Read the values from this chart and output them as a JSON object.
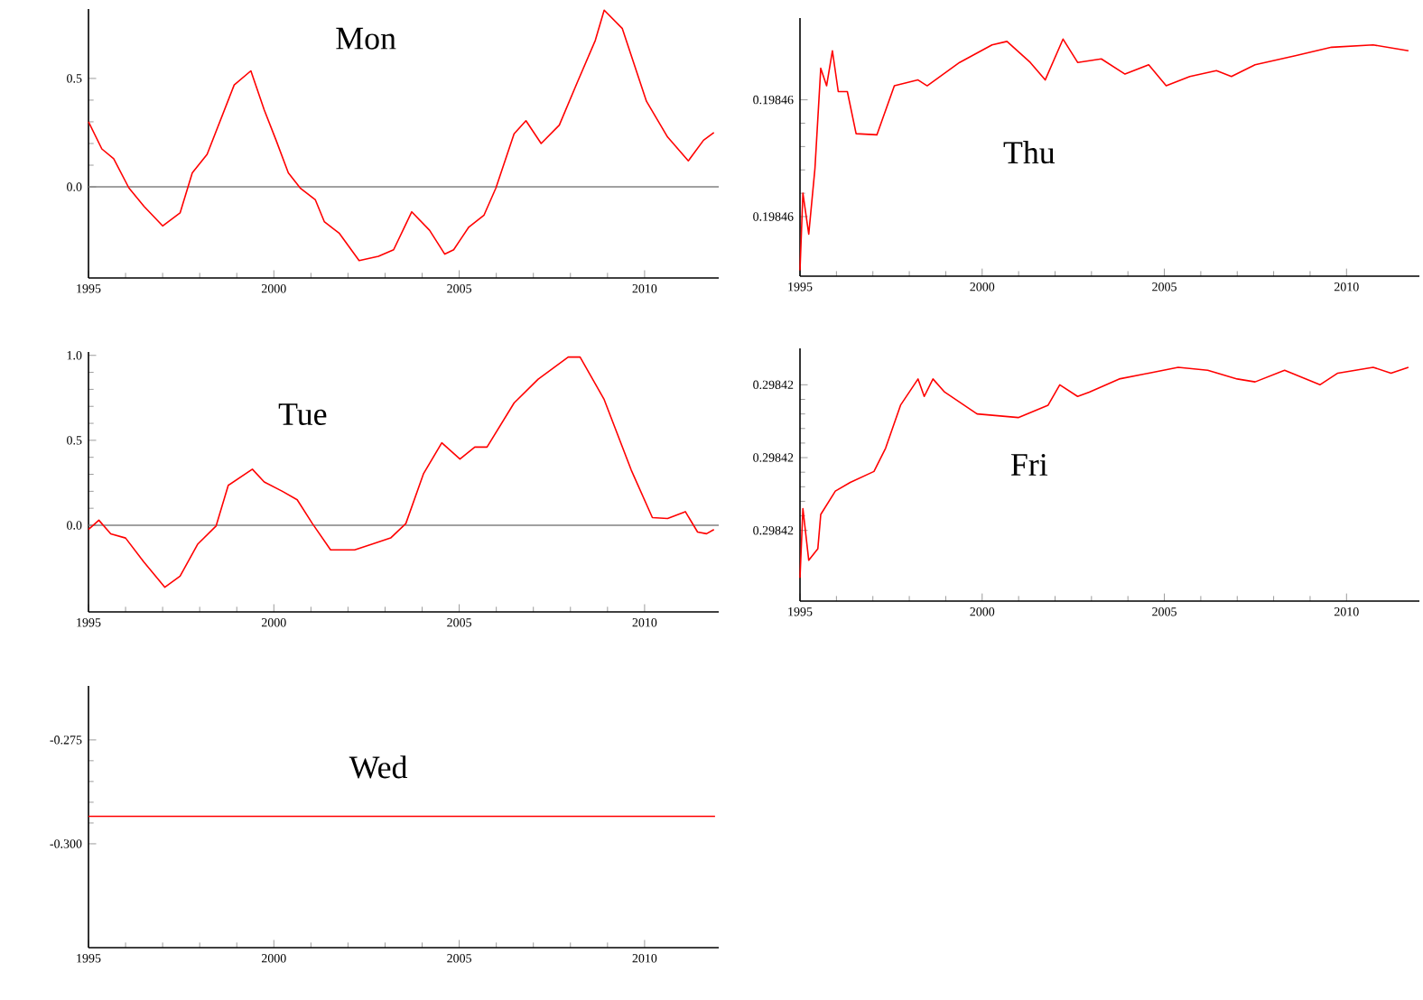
{
  "chart_data": [
    {
      "type": "line",
      "title": "Mon",
      "color": "#ff0000",
      "xlim": [
        1995,
        2012
      ],
      "ylim": [
        -0.42,
        0.82
      ],
      "xticks": [
        1995,
        2000,
        2005,
        2010
      ],
      "yticks": [
        {
          "value": 0,
          "label": "0.0"
        },
        0.5
      ],
      "ref_lines": [
        {
          "axis": "y",
          "value": 0,
          "color": "#808080"
        }
      ],
      "x": [
        1995.0,
        1995.36,
        1995.68,
        1996.09,
        1996.5,
        1997.0,
        1997.47,
        1997.8,
        1998.2,
        1998.93,
        1999.38,
        1999.74,
        2000.06,
        2000.39,
        2000.71,
        2001.12,
        2001.36,
        2001.77,
        2002.3,
        2002.82,
        2003.23,
        2003.72,
        2004.2,
        2004.61,
        2004.85,
        2005.26,
        2005.67,
        2005.99,
        2006.48,
        2006.8,
        2007.21,
        2007.7,
        2008.18,
        2008.67,
        2008.91,
        2009.4,
        2010.05,
        2010.62,
        2011.18,
        2011.59,
        2011.87
      ],
      "values": [
        0.3,
        0.175,
        0.13,
        -0.005,
        -0.09,
        -0.18,
        -0.12,
        0.065,
        0.15,
        0.47,
        0.535,
        0.355,
        0.215,
        0.065,
        -0.005,
        -0.06,
        -0.16,
        -0.215,
        -0.34,
        -0.32,
        -0.29,
        -0.115,
        -0.2,
        -0.31,
        -0.29,
        -0.185,
        -0.13,
        -0.005,
        0.245,
        0.305,
        0.2,
        0.285,
        0.48,
        0.675,
        0.815,
        0.73,
        0.395,
        0.23,
        0.12,
        0.215,
        0.25
      ]
    },
    {
      "type": "line",
      "title": "Thu",
      "color": "#ff0000",
      "xlim": [
        1995,
        2012
      ],
      "ylim": [
        0.19845596,
        0.1984648
      ],
      "xticks": [
        1995,
        2000,
        2005,
        2010
      ],
      "yticks": [
        {
          "value": 0.198458,
          "label": "0.19846"
        },
        {
          "value": 0.198462,
          "label": "0.19846"
        }
      ],
      "x": [
        1995.0,
        1995.08,
        1995.24,
        1995.41,
        1995.57,
        1995.73,
        1995.89,
        1996.05,
        1996.3,
        1996.54,
        1997.11,
        1997.59,
        1998.24,
        1998.49,
        1999.38,
        2000.27,
        2000.68,
        2001.32,
        2001.73,
        2002.22,
        2002.62,
        2003.27,
        2003.92,
        2004.57,
        2005.05,
        2005.7,
        2006.43,
        2006.84,
        2007.49,
        2008.62,
        2009.59,
        2010.73,
        2011.7
      ],
      "values": [
        0.19845616,
        0.1984588,
        0.1984574,
        0.19845964,
        0.19846308,
        0.19846248,
        0.19846368,
        0.19846228,
        0.19846228,
        0.19846084,
        0.1984608,
        0.19846248,
        0.19846268,
        0.19846248,
        0.19846328,
        0.19846388,
        0.198464,
        0.19846328,
        0.19846268,
        0.19846408,
        0.19846328,
        0.1984634,
        0.19846288,
        0.1984632,
        0.19846248,
        0.1984628,
        0.198463,
        0.1984628,
        0.1984632,
        0.19846352,
        0.1984638,
        0.19846388,
        0.19846368
      ]
    },
    {
      "type": "line",
      "title": "Tue",
      "color": "#ff0000",
      "xlim": [
        1995,
        2012
      ],
      "ylim": [
        -0.51,
        1.02
      ],
      "xticks": [
        1995,
        2000,
        2005,
        2010
      ],
      "yticks": [
        {
          "value": 0,
          "label": "0.0"
        },
        0.5,
        {
          "value": 1,
          "label": "1.0"
        }
      ],
      "ref_lines": [
        {
          "axis": "y",
          "value": 0,
          "color": "#808080"
        }
      ],
      "x": [
        1995.0,
        1995.28,
        1995.6,
        1996.0,
        1996.49,
        1997.06,
        1997.47,
        1997.95,
        1998.44,
        1998.77,
        1999.42,
        1999.74,
        2000.23,
        2000.63,
        2001.04,
        2001.53,
        2002.18,
        2002.66,
        2003.15,
        2003.56,
        2004.04,
        2004.53,
        2005.02,
        2005.42,
        2005.75,
        2006.48,
        2007.13,
        2007.94,
        2008.26,
        2008.91,
        2009.64,
        2010.21,
        2010.62,
        2011.1,
        2011.43,
        2011.67,
        2011.87
      ],
      "values": [
        -0.025,
        0.03,
        -0.05,
        -0.075,
        -0.215,
        -0.365,
        -0.3,
        -0.11,
        -0.005,
        0.235,
        0.33,
        0.255,
        0.2,
        0.15,
        0.01,
        -0.145,
        -0.145,
        -0.11,
        -0.075,
        0.01,
        0.305,
        0.485,
        0.39,
        0.46,
        0.46,
        0.72,
        0.86,
        0.99,
        0.99,
        0.74,
        0.325,
        0.045,
        0.04,
        0.08,
        -0.04,
        -0.05,
        -0.025
      ]
    },
    {
      "type": "line",
      "title": "Fri",
      "color": "#ff0000",
      "xlim": [
        1995,
        2012
      ],
      "ylim": [
        0.29841212,
        0.298426
      ],
      "xticks": [
        1995,
        2000,
        2005,
        2010
      ],
      "yticks": [
        {
          "value": 0.298416,
          "label": "0.29842"
        },
        {
          "value": 0.29842,
          "label": "0.29842"
        },
        {
          "value": 0.298424,
          "label": "0.29842"
        }
      ],
      "x": [
        1995.0,
        1995.08,
        1995.24,
        1995.49,
        1995.57,
        1995.97,
        1996.38,
        1997.03,
        1997.35,
        1997.76,
        1998.24,
        1998.41,
        1998.65,
        1998.97,
        1999.86,
        2000.99,
        2001.81,
        2002.13,
        2002.62,
        2002.94,
        2003.76,
        2004.57,
        2005.38,
        2006.19,
        2007.0,
        2007.49,
        2008.3,
        2009.27,
        2009.76,
        2010.73,
        2011.22,
        2011.7
      ],
      "values": [
        0.2984134,
        0.2984172,
        0.29841436,
        0.298415,
        0.29841688,
        0.29841816,
        0.29841864,
        0.29841924,
        0.29842052,
        0.29842288,
        0.29842432,
        0.29842336,
        0.29842432,
        0.2984236,
        0.2984224,
        0.2984222,
        0.29842288,
        0.298424,
        0.29842336,
        0.2984236,
        0.29842432,
        0.29842464,
        0.29842496,
        0.2984248,
        0.29842432,
        0.29842416,
        0.2984248,
        0.298424,
        0.29842464,
        0.29842496,
        0.29842464,
        0.29842496
      ]
    },
    {
      "type": "line",
      "title": "Wed",
      "color": "#ff0000",
      "xlim": [
        1995,
        2012
      ],
      "ylim": [
        -0.325,
        -0.262
      ],
      "xticks": [
        1995,
        2000,
        2005,
        2010
      ],
      "yticks": [
        {
          "value": -0.3,
          "label": "-0.300"
        },
        {
          "value": -0.275,
          "label": "-0.275"
        }
      ],
      "x": [
        1995.0,
        2011.9
      ],
      "values": [
        -0.2934,
        -0.2934
      ]
    }
  ]
}
